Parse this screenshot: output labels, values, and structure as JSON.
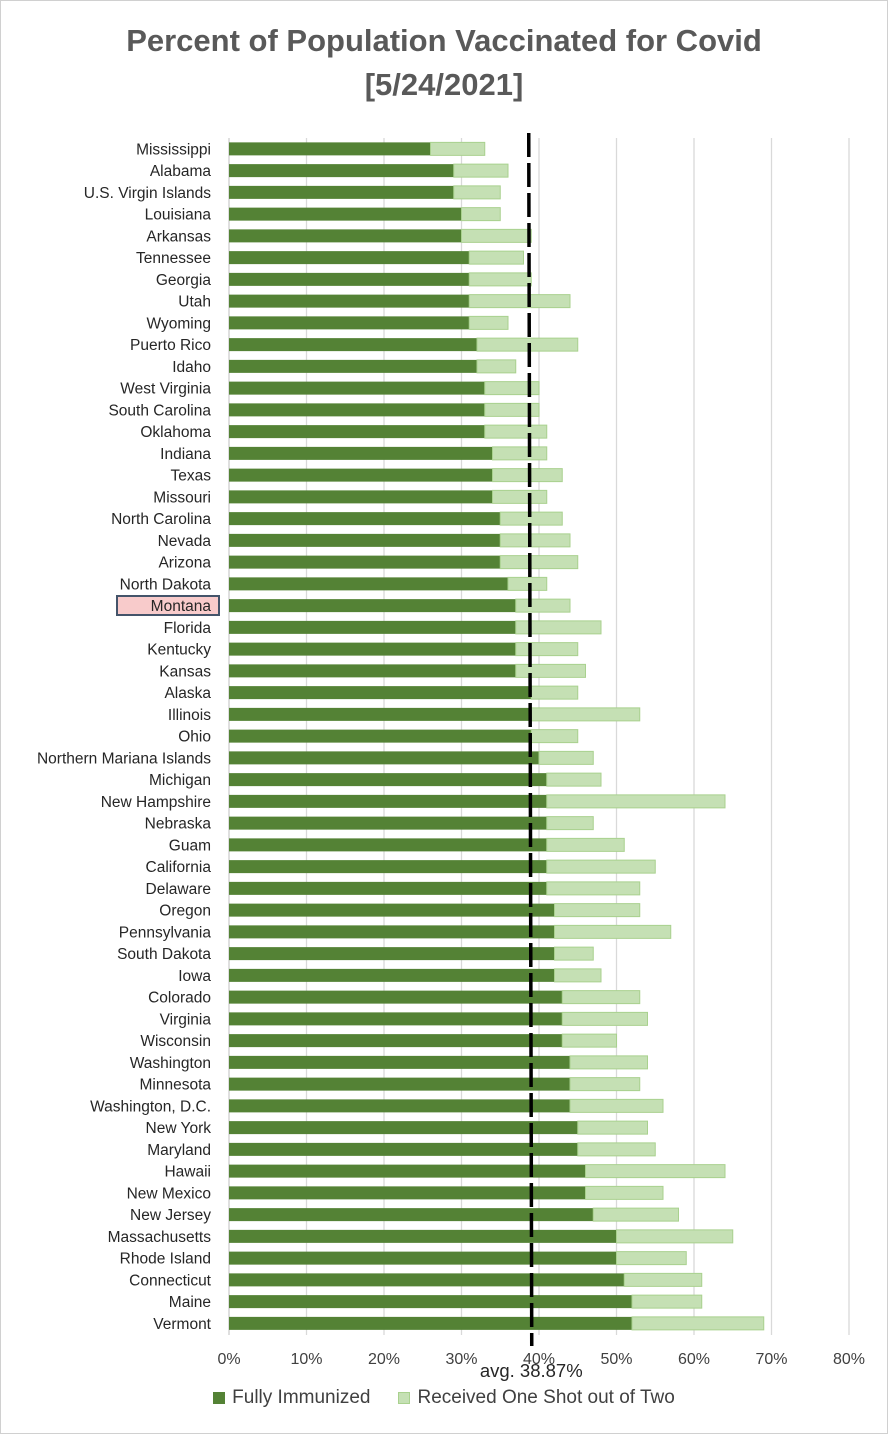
{
  "title": {
    "line1": "Percent of Population Vaccinated for Covid",
    "line2": "[5/24/2021]"
  },
  "colors": {
    "full": "#548235",
    "one_shot": "#c5e0b4",
    "one_shot_border": "#a9d18e",
    "grid": "#d9d9d9",
    "avg_line": "#000000",
    "highlight_fill": "#f8cbcb",
    "highlight_border": "#44546a"
  },
  "legend": {
    "full": "Fully Immunized",
    "one_shot": "Received One Shot out of Two"
  },
  "highlight": "Montana",
  "chart_data": {
    "type": "bar",
    "orientation": "horizontal",
    "stacked": true,
    "categories": [
      "Mississippi",
      "Alabama",
      "U.S. Virgin Islands",
      "Louisiana",
      "Arkansas",
      "Tennessee",
      "Georgia",
      "Utah",
      "Wyoming",
      "Puerto Rico",
      "Idaho",
      "West Virginia",
      "South Carolina",
      "Oklahoma",
      "Indiana",
      "Texas",
      "Missouri",
      "North Carolina",
      "Nevada",
      "Arizona",
      "North Dakota",
      "Montana",
      "Florida",
      "Kentucky",
      "Kansas",
      "Alaska",
      "Illinois",
      "Ohio",
      "Northern Mariana Islands",
      "Michigan",
      "New Hampshire",
      "Nebraska",
      "Guam",
      "California",
      "Delaware",
      "Oregon",
      "Pennsylvania",
      "South Dakota",
      "Iowa",
      "Colorado",
      "Virginia",
      "Wisconsin",
      "Washington",
      "Minnesota",
      "Washington, D.C.",
      "New York",
      "Maryland",
      "Hawaii",
      "New Mexico",
      "New Jersey",
      "Massachusetts",
      "Rhode Island",
      "Connecticut",
      "Maine",
      "Vermont"
    ],
    "series": [
      {
        "name": "Fully Immunized",
        "values": [
          26,
          29,
          29,
          30,
          30,
          31,
          31,
          31,
          31,
          32,
          32,
          33,
          33,
          33,
          34,
          34,
          34,
          35,
          35,
          35,
          36,
          37,
          37,
          37,
          37,
          39,
          39,
          39,
          40,
          41,
          41,
          41,
          41,
          41,
          41,
          42,
          42,
          42,
          42,
          43,
          43,
          43,
          44,
          44,
          44,
          45,
          45,
          46,
          46,
          47,
          50,
          50,
          51,
          52,
          52
        ]
      },
      {
        "name": "Received One Shot out of Two",
        "values": [
          7,
          7,
          6,
          5,
          9,
          7,
          8,
          13,
          5,
          13,
          5,
          7,
          7,
          8,
          7,
          9,
          7,
          8,
          9,
          10,
          5,
          7,
          11,
          8,
          9,
          6,
          14,
          6,
          7,
          7,
          23,
          6,
          10,
          14,
          12,
          11,
          15,
          5,
          6,
          10,
          11,
          7,
          10,
          9,
          12,
          9,
          10,
          18,
          10,
          11,
          15,
          9,
          10,
          9,
          17
        ]
      }
    ],
    "average": 38.87,
    "average_label": "avg. 38.87%",
    "xlim": [
      0,
      80
    ],
    "xticks": [
      0,
      10,
      20,
      30,
      40,
      50,
      60,
      70,
      80
    ],
    "xtick_labels": [
      "0%",
      "10%",
      "20%",
      "30%",
      "40%",
      "50%",
      "60%",
      "70%",
      "80%"
    ],
    "grid": true,
    "legend_position": "bottom"
  }
}
